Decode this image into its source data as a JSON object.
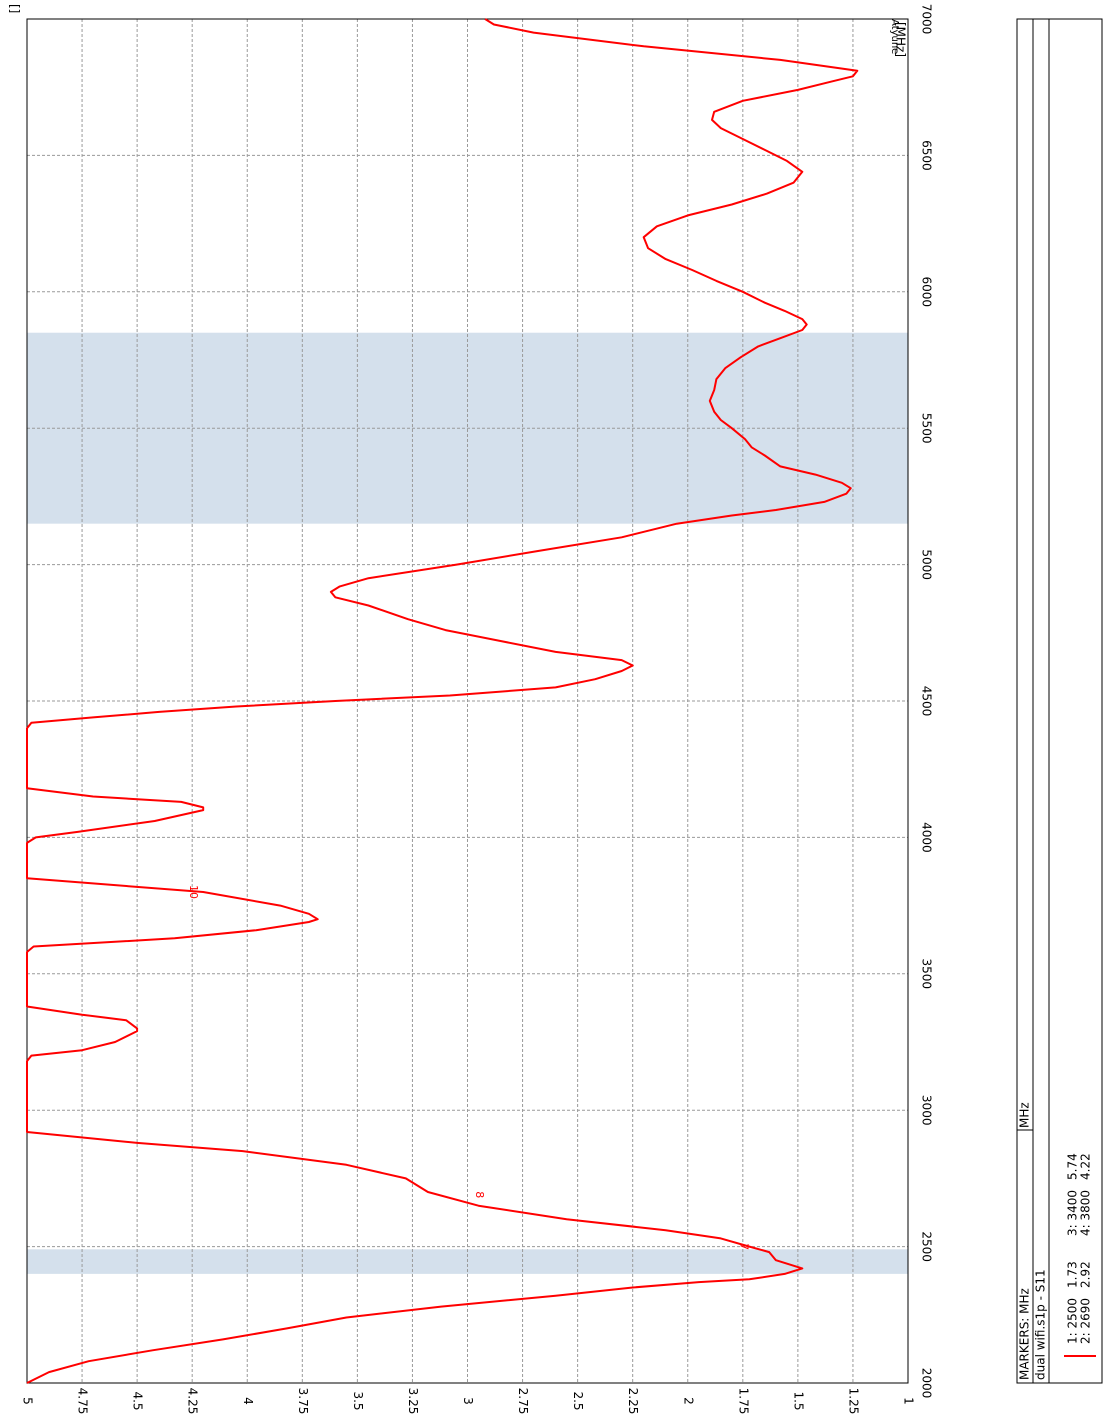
{
  "chart_data": {
    "type": "line",
    "orientation": "rotated-90-clockwise",
    "title": "",
    "xlabel": "[MHz]",
    "ylabel": "[]",
    "xlim": [
      2000,
      7000
    ],
    "ylim": [
      1,
      5
    ],
    "x_ticks": [
      2000,
      2500,
      3000,
      3500,
      4000,
      4500,
      5000,
      5500,
      6000,
      6500,
      7000
    ],
    "y_ticks": [
      "5",
      "4.75",
      "4.5",
      "4.25",
      "4",
      "3.75",
      "3.5",
      "3.25",
      "3",
      "2.75",
      "2.5",
      "2.25",
      "2",
      "1.75",
      "1.5",
      "1.25",
      "1"
    ],
    "y_tick_values": [
      5,
      4.75,
      4.5,
      4.25,
      4,
      3.75,
      3.5,
      3.25,
      3,
      2.75,
      2.5,
      2.25,
      2,
      1.75,
      1.5,
      1.25,
      1
    ],
    "corner_label": "Atyune",
    "grid": true,
    "highlight_bands": [
      [
        2400,
        2490
      ],
      [
        5150,
        5850
      ]
    ],
    "band_color": "#d4e0ec",
    "series": [
      {
        "name": "dual wifi.s1p - S11",
        "color": "#ff0000",
        "x": [
          2000,
          2040,
          2080,
          2120,
          2160,
          2200,
          2240,
          2280,
          2320,
          2350,
          2370,
          2380,
          2400,
          2420,
          2450,
          2480,
          2500,
          2530,
          2560,
          2600,
          2650,
          2700,
          2750,
          2800,
          2850,
          2880,
          2920,
          3000,
          3060,
          3100,
          3150,
          3180,
          3200,
          3220,
          3250,
          3290,
          3300,
          3330,
          3350,
          3380,
          3420,
          3500,
          3550,
          3580,
          3600,
          3630,
          3660,
          3690,
          3700,
          3720,
          3750,
          3800,
          3850,
          3900,
          3950,
          3980,
          4000,
          4020,
          4060,
          4100,
          4110,
          4130,
          4150,
          4180,
          4200,
          4250,
          4300,
          4350,
          4400,
          4420,
          4440,
          4460,
          4480,
          4500,
          4520,
          4550,
          4580,
          4610,
          4630,
          4650,
          4680,
          4720,
          4760,
          4800,
          4850,
          4880,
          4900,
          4920,
          4950,
          5000,
          5050,
          5100,
          5150,
          5180,
          5200,
          5230,
          5260,
          5280,
          5300,
          5330,
          5360,
          5400,
          5430,
          5460,
          5500,
          5530,
          5560,
          5600,
          5640,
          5680,
          5720,
          5760,
          5800,
          5830,
          5860,
          5880,
          5900,
          5930,
          5960,
          6000,
          6040,
          6080,
          6120,
          6160,
          6200,
          6240,
          6280,
          6320,
          6360,
          6400,
          6440,
          6480,
          6520,
          6560,
          6600,
          6630,
          6660,
          6700,
          6740,
          6770,
          6790,
          6810,
          6850,
          6900,
          6950,
          6980,
          7000
        ],
        "y": [
          5,
          4.9,
          4.72,
          4.43,
          4.11,
          3.82,
          3.55,
          3.12,
          2.6,
          2.25,
          1.95,
          1.72,
          1.56,
          1.48,
          1.6,
          1.63,
          1.72,
          1.85,
          2.1,
          2.55,
          2.95,
          3.18,
          3.28,
          3.55,
          4.02,
          4.5,
          5,
          5,
          5,
          5,
          5,
          5,
          4.98,
          4.75,
          4.6,
          4.5,
          4.5,
          4.55,
          4.75,
          5,
          5,
          5,
          5,
          5,
          4.97,
          4.33,
          3.96,
          3.72,
          3.68,
          3.72,
          3.85,
          4.2,
          5,
          5,
          5,
          5,
          4.96,
          4.77,
          4.42,
          4.2,
          4.2,
          4.3,
          4.7,
          5,
          5,
          5,
          5,
          5,
          5,
          4.98,
          4.7,
          4.4,
          4.05,
          3.6,
          3.08,
          2.6,
          2.42,
          2.3,
          2.25,
          2.3,
          2.6,
          2.85,
          3.1,
          3.27,
          3.45,
          3.6,
          3.62,
          3.58,
          3.45,
          3.05,
          2.68,
          2.3,
          2.05,
          1.8,
          1.6,
          1.38,
          1.28,
          1.26,
          1.3,
          1.42,
          1.58,
          1.65,
          1.71,
          1.74,
          1.8,
          1.85,
          1.88,
          1.9,
          1.88,
          1.87,
          1.83,
          1.76,
          1.68,
          1.58,
          1.48,
          1.46,
          1.48,
          1.56,
          1.65,
          1.75,
          1.87,
          1.98,
          2.1,
          2.18,
          2.2,
          2.14,
          2.0,
          1.8,
          1.64,
          1.52,
          1.48,
          1.55,
          1.65,
          1.75,
          1.85,
          1.89,
          1.88,
          1.75,
          1.5,
          1.35,
          1.25,
          1.23,
          1.58,
          2.2,
          2.7,
          2.88,
          2.92
        ]
      }
    ],
    "marker_labels": [
      {
        "label": "7",
        "x": 2500,
        "y": 1.72
      },
      {
        "label": "8",
        "x": 2690,
        "y": 2.92
      },
      {
        "label": "10",
        "x": 3800,
        "y": 4.22
      }
    ]
  },
  "panel": {
    "header_left": "MARKERS:  MHz",
    "header_right": "MHz",
    "trace_name": "dual wifi.s1p - S11",
    "markers": [
      {
        "id": "1: 2500",
        "value": "1.73"
      },
      {
        "id": "2: 2690",
        "value": "2.92"
      },
      {
        "id": "3: 3400",
        "value": "5.74"
      },
      {
        "id": "4: 3800",
        "value": "4.22"
      }
    ]
  }
}
